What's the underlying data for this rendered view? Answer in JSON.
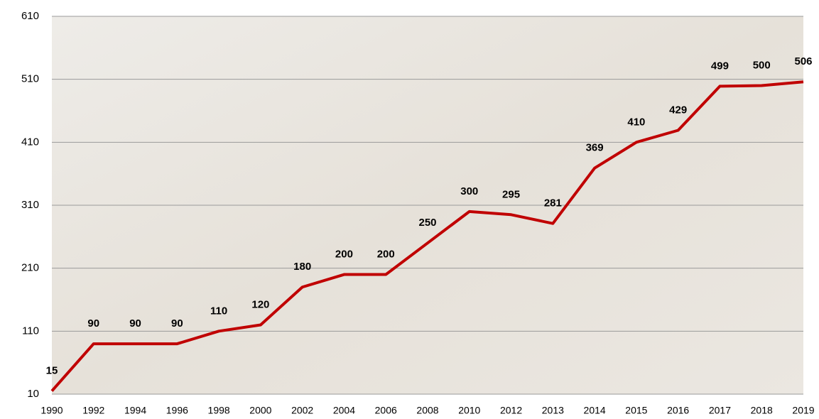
{
  "chart_data": {
    "type": "line",
    "categories": [
      "1990",
      "1992",
      "1994",
      "1996",
      "1998",
      "2000",
      "2002",
      "2004",
      "2006",
      "2008",
      "2010",
      "2012",
      "2013",
      "2014",
      "2015",
      "2016",
      "2017",
      "2018",
      "2019"
    ],
    "series": [
      {
        "color": "#c00000",
        "values": [
          15,
          90,
          90,
          90,
          110,
          120,
          180,
          200,
          200,
          250,
          300,
          295,
          281,
          369,
          410,
          429,
          499,
          500,
          506
        ]
      }
    ],
    "ylim": [
      10,
      610
    ],
    "yticks": [
      10,
      110,
      210,
      310,
      410,
      510,
      610
    ],
    "grid": true,
    "data_labels": true
  }
}
